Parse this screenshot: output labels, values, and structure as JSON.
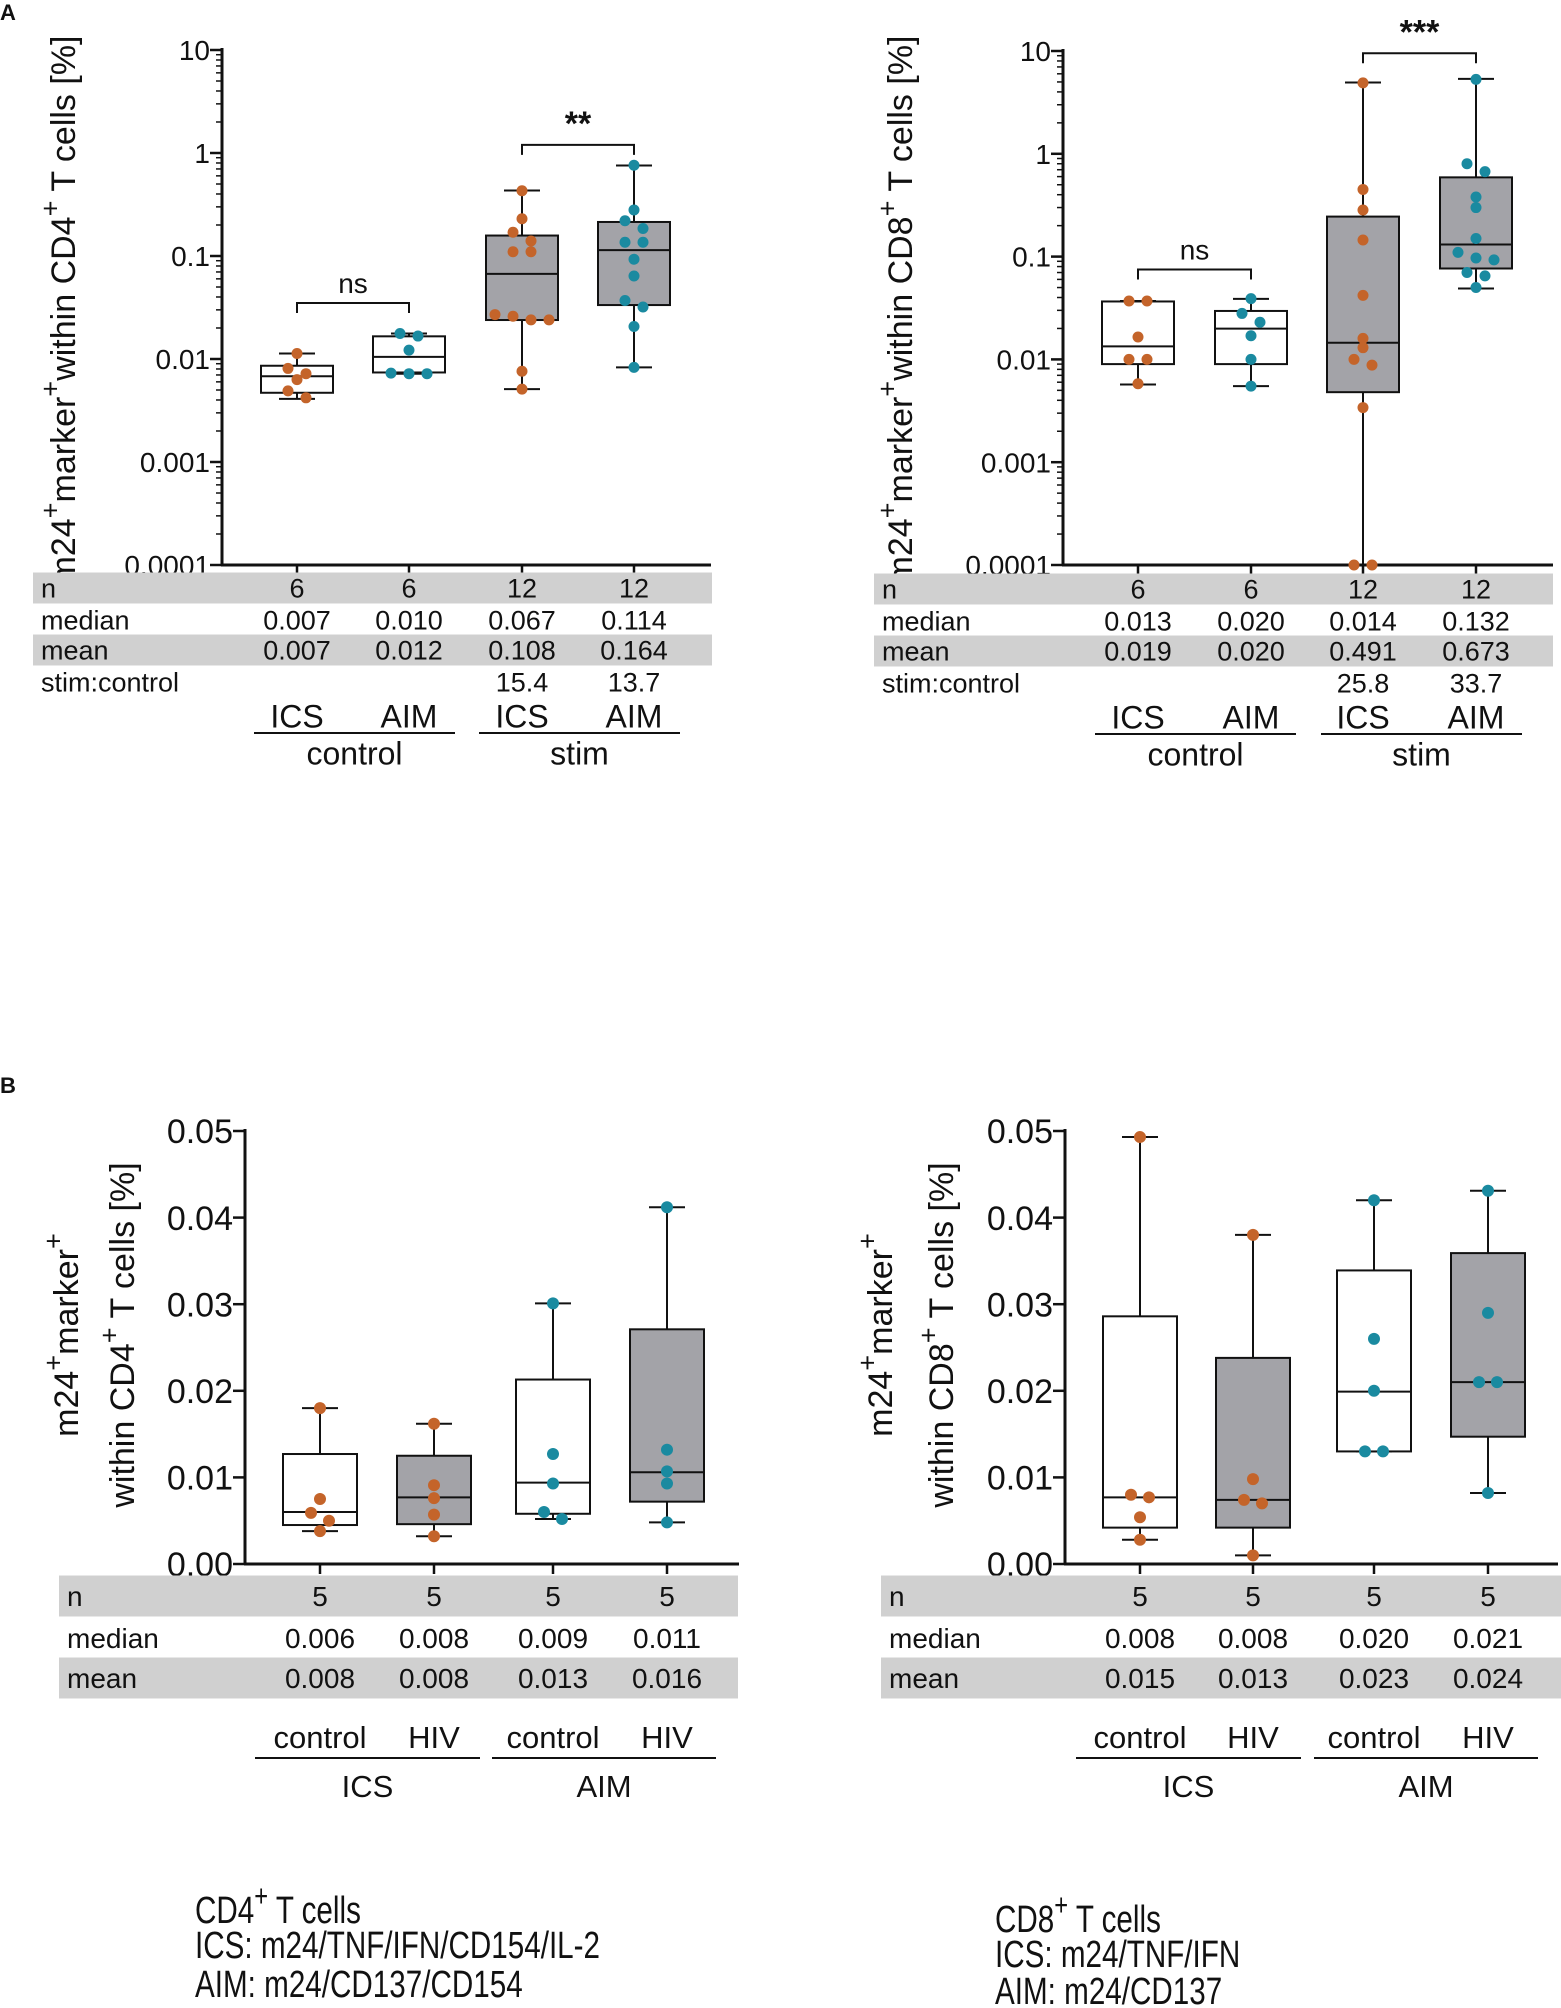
{
  "panel_labels": {
    "a": "A",
    "b": "B"
  },
  "colors": {
    "ics_points": "#c4642a",
    "aim_points": "#1a8aa0",
    "box_gray": "#a3a3a8",
    "table_band": "#d0d0d0",
    "box_white": "#ffffff"
  },
  "chart_data": [
    {
      "panel": "A",
      "type": "box",
      "yscale": "log",
      "ylim": [
        0.0001,
        10
      ],
      "ylabel_lines": [
        [
          {
            "t": "m24"
          },
          {
            "t": "+",
            "sup": true
          },
          {
            "t": "marker"
          },
          {
            "t": "+",
            "sup": true
          },
          {
            "t": "within CD4"
          },
          {
            "t": "+",
            "sup": true
          },
          {
            "t": " T cells [%]"
          }
        ]
      ],
      "ytick_labels": [
        "0.0001",
        "0.001",
        "0.01",
        "0.1",
        "1",
        "10"
      ],
      "ytick_values": [
        0.0001,
        0.001,
        0.01,
        0.1,
        1,
        10
      ],
      "categories": [
        "ICS",
        "AIM",
        "ICS",
        "AIM"
      ],
      "groups": [
        "control",
        "stim"
      ],
      "box_fill": [
        "white",
        "white",
        "gray",
        "gray"
      ],
      "point_color": [
        "ics",
        "aim",
        "ics",
        "aim"
      ],
      "boxes": [
        {
          "min": 0.0041,
          "q1": 0.0047,
          "median": 0.0068,
          "q3": 0.0086,
          "max": 0.0113,
          "points": [
            0.0113,
            0.0081,
            0.0072,
            0.0063,
            0.0049,
            0.0042
          ]
        },
        {
          "min": 0.0072,
          "q1": 0.0074,
          "median": 0.0105,
          "q3": 0.0166,
          "max": 0.0177,
          "points": [
            0.0177,
            0.0167,
            0.0122,
            0.0073,
            0.0072,
            0.0072
          ]
        },
        {
          "min": 0.0051,
          "q1": 0.0239,
          "median": 0.067,
          "q3": 0.158,
          "max": 0.432,
          "points": [
            0.43,
            0.23,
            0.17,
            0.14,
            0.11,
            0.11,
            0.027,
            0.026,
            0.024,
            0.024,
            0.0076,
            0.0051
          ]
        },
        {
          "min": 0.0083,
          "q1": 0.0334,
          "median": 0.114,
          "q3": 0.214,
          "max": 0.757,
          "points": [
            0.76,
            0.28,
            0.22,
            0.185,
            0.136,
            0.136,
            0.093,
            0.064,
            0.037,
            0.032,
            0.0207,
            0.0083
          ]
        }
      ],
      "significance": [
        {
          "pair": [
            0,
            1
          ],
          "label": "ns",
          "y": 0.035
        },
        {
          "pair": [
            2,
            3
          ],
          "label": "**",
          "y": 1.2
        }
      ],
      "table": [
        {
          "label": "n",
          "values": [
            "6",
            "6",
            "12",
            "12"
          ],
          "shaded": true
        },
        {
          "label": "median",
          "values": [
            "0.007",
            "0.010",
            "0.067",
            "0.114"
          ],
          "shaded": false
        },
        {
          "label": "mean",
          "values": [
            "0.007",
            "0.012",
            "0.108",
            "0.164"
          ],
          "shaded": true
        },
        {
          "label": "stim:control",
          "values": [
            "",
            "",
            "15.4",
            "13.7"
          ],
          "shaded": false
        }
      ]
    },
    {
      "panel": "A",
      "type": "box",
      "yscale": "log",
      "ylim": [
        0.0001,
        10
      ],
      "ylabel_lines": [
        [
          {
            "t": "m24"
          },
          {
            "t": "+",
            "sup": true
          },
          {
            "t": "marker"
          },
          {
            "t": "+",
            "sup": true
          },
          {
            "t": "within CD8"
          },
          {
            "t": "+",
            "sup": true
          },
          {
            "t": " T cells [%]"
          }
        ]
      ],
      "ytick_labels": [
        "0.0001",
        "0.001",
        "0.01",
        "0.1",
        "1",
        "10"
      ],
      "ytick_values": [
        0.0001,
        0.001,
        0.01,
        0.1,
        1,
        10
      ],
      "categories": [
        "ICS",
        "AIM",
        "ICS",
        "AIM"
      ],
      "groups": [
        "control",
        "stim"
      ],
      "box_fill": [
        "white",
        "white",
        "gray",
        "gray"
      ],
      "point_color": [
        "ics",
        "aim",
        "ics",
        "aim"
      ],
      "boxes": [
        {
          "min": 0.0057,
          "q1": 0.009,
          "median": 0.0134,
          "q3": 0.0366,
          "max": 0.037,
          "points": [
            0.037,
            0.037,
            0.0165,
            0.01,
            0.01,
            0.0058
          ]
        },
        {
          "min": 0.0055,
          "q1": 0.009,
          "median": 0.0199,
          "q3": 0.0296,
          "max": 0.0388,
          "points": [
            0.039,
            0.028,
            0.023,
            0.017,
            0.01,
            0.0055
          ]
        },
        {
          "min": 0.0001,
          "q1": 0.0048,
          "median": 0.0145,
          "q3": 0.245,
          "max": 4.94,
          "points": [
            4.9,
            0.45,
            0.284,
            0.145,
            0.042,
            0.016,
            0.013,
            0.01,
            0.0088,
            0.0034,
            0.0001,
            0.0001
          ]
        },
        {
          "min": 0.049,
          "q1": 0.0766,
          "median": 0.131,
          "q3": 0.59,
          "max": 5.35,
          "points": [
            5.3,
            0.8,
            0.67,
            0.38,
            0.3,
            0.15,
            0.11,
            0.097,
            0.093,
            0.07,
            0.065,
            0.05
          ]
        }
      ],
      "significance": [
        {
          "pair": [
            0,
            1
          ],
          "label": "ns",
          "y": 0.075
        },
        {
          "pair": [
            2,
            3
          ],
          "label": "***",
          "y": 9.5
        }
      ],
      "table": [
        {
          "label": "n",
          "values": [
            "6",
            "6",
            "12",
            "12"
          ],
          "shaded": true
        },
        {
          "label": "median",
          "values": [
            "0.013",
            "0.020",
            "0.014",
            "0.132"
          ],
          "shaded": false
        },
        {
          "label": "mean",
          "values": [
            "0.019",
            "0.020",
            "0.491",
            "0.673"
          ],
          "shaded": true
        },
        {
          "label": "stim:control",
          "values": [
            "",
            "",
            "25.8",
            "33.7"
          ],
          "shaded": false
        }
      ]
    },
    {
      "panel": "B",
      "type": "box",
      "yscale": "linear",
      "ylim": [
        0,
        0.05
      ],
      "ylabel_lines": [
        [
          {
            "t": "m24"
          },
          {
            "t": "+",
            "sup": true
          },
          {
            "t": "marker"
          },
          {
            "t": "+",
            "sup": true
          }
        ],
        [
          {
            "t": "within CD4"
          },
          {
            "t": "+",
            "sup": true
          },
          {
            "t": " T cells [%]"
          }
        ]
      ],
      "ytick_labels": [
        "0.00",
        "0.01",
        "0.02",
        "0.03",
        "0.04",
        "0.05"
      ],
      "ytick_values": [
        0,
        0.01,
        0.02,
        0.03,
        0.04,
        0.05
      ],
      "categories": [
        "control",
        "HIV",
        "control",
        "HIV"
      ],
      "groups": [
        "ICS",
        "AIM"
      ],
      "box_fill": [
        "white",
        "gray",
        "white",
        "gray"
      ],
      "point_color": [
        "ics",
        "ics",
        "aim",
        "aim"
      ],
      "boxes": [
        {
          "min": 0.0038,
          "q1": 0.0045,
          "median": 0.006,
          "q3": 0.0127,
          "max": 0.018,
          "points": [
            0.018,
            0.0075,
            0.0059,
            0.005,
            0.0038
          ]
        },
        {
          "min": 0.0032,
          "q1": 0.0046,
          "median": 0.0077,
          "q3": 0.0125,
          "max": 0.0162,
          "points": [
            0.0162,
            0.0091,
            0.0076,
            0.0057,
            0.0032
          ]
        },
        {
          "min": 0.0052,
          "q1": 0.0058,
          "median": 0.0094,
          "q3": 0.0213,
          "max": 0.0301,
          "points": [
            0.0301,
            0.0127,
            0.0093,
            0.006,
            0.0052
          ]
        },
        {
          "min": 0.0048,
          "q1": 0.0072,
          "median": 0.0106,
          "q3": 0.0271,
          "max": 0.0412,
          "points": [
            0.0412,
            0.0132,
            0.0107,
            0.0093,
            0.0048
          ]
        }
      ],
      "significance": [],
      "table": [
        {
          "label": "n",
          "values": [
            "5",
            "5",
            "5",
            "5"
          ],
          "shaded": true
        },
        {
          "label": "median",
          "values": [
            "0.006",
            "0.008",
            "0.009",
            "0.011"
          ],
          "shaded": false
        },
        {
          "label": "mean",
          "values": [
            "0.008",
            "0.008",
            "0.013",
            "0.016"
          ],
          "shaded": true
        }
      ]
    },
    {
      "panel": "B",
      "type": "box",
      "yscale": "linear",
      "ylim": [
        0,
        0.05
      ],
      "ylabel_lines": [
        [
          {
            "t": "m24"
          },
          {
            "t": "+",
            "sup": true
          },
          {
            "t": "marker"
          },
          {
            "t": "+",
            "sup": true
          }
        ],
        [
          {
            "t": "within CD8"
          },
          {
            "t": "+",
            "sup": true
          },
          {
            "t": " T cells [%]"
          }
        ]
      ],
      "ytick_labels": [
        "0.00",
        "0.01",
        "0.02",
        "0.03",
        "0.04",
        "0.05"
      ],
      "ytick_values": [
        0,
        0.01,
        0.02,
        0.03,
        0.04,
        0.05
      ],
      "categories": [
        "control",
        "HIV",
        "control",
        "HIV"
      ],
      "groups": [
        "ICS",
        "AIM"
      ],
      "box_fill": [
        "white",
        "gray",
        "white",
        "gray"
      ],
      "point_color": [
        "ics",
        "ics",
        "aim",
        "aim"
      ],
      "boxes": [
        {
          "min": 0.0028,
          "q1": 0.0042,
          "median": 0.0077,
          "q3": 0.0286,
          "max": 0.0493,
          "points": [
            0.0493,
            0.008,
            0.0077,
            0.0054,
            0.0028
          ]
        },
        {
          "min": 0.001,
          "q1": 0.0042,
          "median": 0.0074,
          "q3": 0.0238,
          "max": 0.038,
          "points": [
            0.038,
            0.0098,
            0.0074,
            0.007,
            0.001
          ]
        },
        {
          "min": 0.013,
          "q1": 0.013,
          "median": 0.0199,
          "q3": 0.0339,
          "max": 0.042,
          "points": [
            0.042,
            0.026,
            0.02,
            0.013,
            0.013
          ]
        },
        {
          "min": 0.0082,
          "q1": 0.0147,
          "median": 0.021,
          "q3": 0.0359,
          "max": 0.0431,
          "points": [
            0.0431,
            0.029,
            0.021,
            0.021,
            0.0082
          ]
        }
      ],
      "significance": [],
      "table": [
        {
          "label": "n",
          "values": [
            "5",
            "5",
            "5",
            "5"
          ],
          "shaded": true
        },
        {
          "label": "median",
          "values": [
            "0.008",
            "0.008",
            "0.020",
            "0.021"
          ],
          "shaded": false
        },
        {
          "label": "mean",
          "values": [
            "0.015",
            "0.013",
            "0.023",
            "0.024"
          ],
          "shaded": true
        }
      ]
    }
  ],
  "footnotes": [
    [
      [
        {
          "t": "CD4"
        },
        {
          "t": "+",
          "sup": true
        },
        {
          "t": " T cells"
        }
      ],
      [
        {
          "t": "ICS: m24/TNF/IFN/CD154/IL-2"
        }
      ],
      [
        {
          "t": "AIM: m24/CD137/CD154"
        }
      ]
    ],
    [
      [
        {
          "t": "CD8"
        },
        {
          "t": "+",
          "sup": true
        },
        {
          "t": " T cells"
        }
      ],
      [
        {
          "t": "ICS: m24/TNF/IFN"
        }
      ],
      [
        {
          "t": "AIM: m24/CD137"
        }
      ]
    ]
  ]
}
